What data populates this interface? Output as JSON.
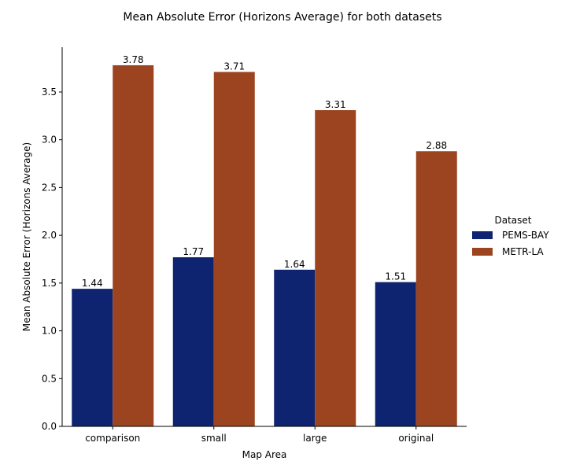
{
  "chart_data": {
    "type": "bar",
    "title": "Mean Absolute Error (Horizons Average) for both datasets",
    "xlabel": "Map Area",
    "ylabel": "Mean Absolute Error (Horizons Average)",
    "categories": [
      "comparison",
      "small",
      "large",
      "original"
    ],
    "series": [
      {
        "name": "PEMS-BAY",
        "color": "#0e2471",
        "values": [
          1.44,
          1.77,
          1.64,
          1.51
        ],
        "labels": [
          "1.44",
          "1.77",
          "1.64",
          "1.51"
        ]
      },
      {
        "name": "METR-LA",
        "color": "#9c4420",
        "values": [
          3.78,
          3.71,
          3.31,
          2.88
        ],
        "labels": [
          "3.78",
          "3.71",
          "3.31",
          "2.88"
        ]
      }
    ],
    "ylim": [
      0,
      3.969
    ],
    "yticks": [
      0.0,
      0.5,
      1.0,
      1.5,
      2.0,
      2.5,
      3.0,
      3.5
    ],
    "ytick_labels": [
      "0.0",
      "0.5",
      "1.0",
      "1.5",
      "2.0",
      "2.5",
      "3.0",
      "3.5"
    ],
    "grid": false,
    "legend": {
      "title": "Dataset",
      "placement": "right"
    }
  }
}
